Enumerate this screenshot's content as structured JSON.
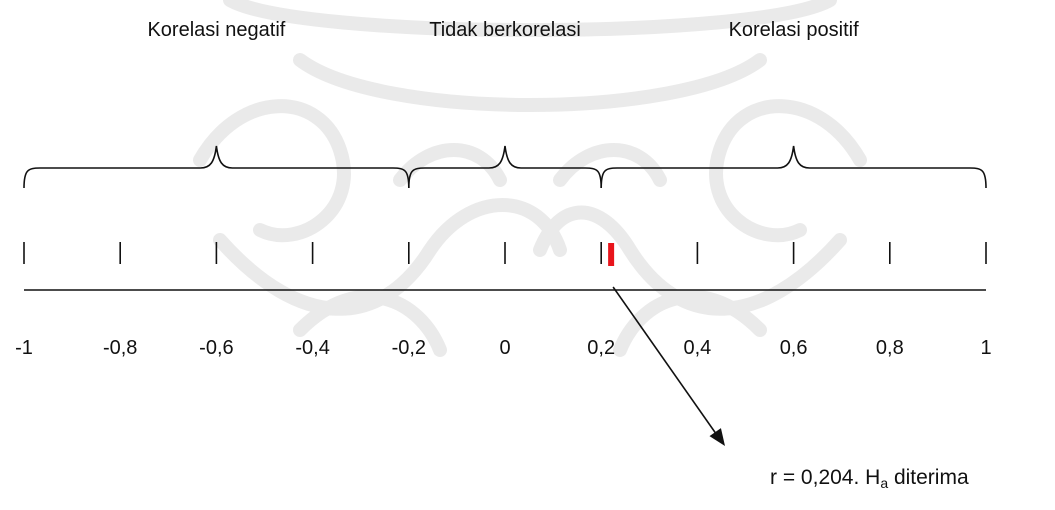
{
  "scale": {
    "min": -1,
    "max": 1,
    "ticks": [
      -1,
      -0.8,
      -0.6,
      -0.4,
      -0.2,
      0,
      0.2,
      0.4,
      0.6,
      0.8,
      1
    ],
    "tick_labels": [
      "-1",
      "-0,8",
      "-0,6",
      "-0,4",
      "-0,2",
      "0",
      "0,2",
      "0,4",
      "0,6",
      "0,8",
      "1"
    ]
  },
  "regions": [
    {
      "label": "Korelasi negatif",
      "from": -1,
      "to": -0.2
    },
    {
      "label": "Tidak berkorelasi",
      "from": -0.2,
      "to": 0.2
    },
    {
      "label": "Korelasi positif",
      "from": 0.2,
      "to": 1
    }
  ],
  "marker": {
    "value": 0.204,
    "color": "#e8141b"
  },
  "result": {
    "prefix": "r = 0,204. H",
    "subscript": "a",
    "suffix": " diterima"
  },
  "colors": {
    "line": "#111111",
    "watermark": "#c7c7c7"
  }
}
